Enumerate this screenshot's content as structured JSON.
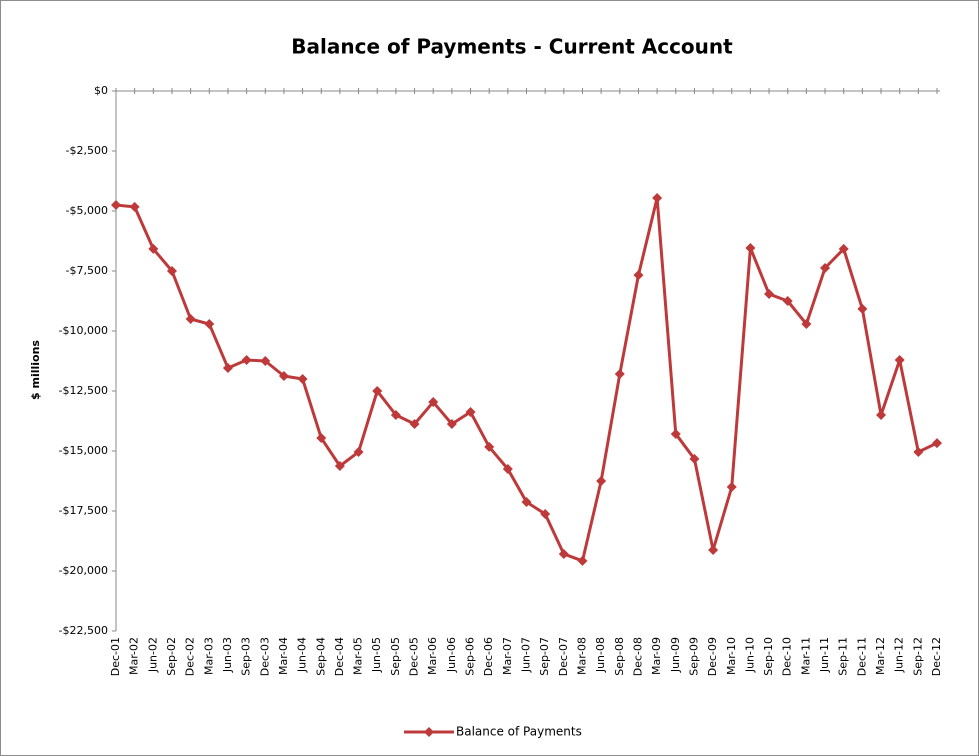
{
  "chart_data": {
    "type": "line",
    "title": "Balance of Payments - Current Account",
    "y_label": "$ millions",
    "categories": [
      "Dec-01",
      "Mar-02",
      "Jun-02",
      "Sep-02",
      "Dec-02",
      "Mar-03",
      "Jun-03",
      "Sep-03",
      "Dec-03",
      "Mar-04",
      "Jun-04",
      "Sep-04",
      "Dec-04",
      "Mar-05",
      "Jun-05",
      "Sep-05",
      "Dec-05",
      "Mar-06",
      "Jun-06",
      "Sep-06",
      "Dec-06",
      "Mar-07",
      "Jun-07",
      "Sep-07",
      "Dec-07",
      "Mar-08",
      "Jun-08",
      "Sep-08",
      "Dec-08",
      "Mar-09",
      "Jun-09",
      "Sep-09",
      "Dec-09",
      "Mar-10",
      "Jun-10",
      "Sep-10",
      "Dec-10",
      "Mar-11",
      "Jun-11",
      "Sep-11",
      "Dec-11",
      "Mar-12",
      "Jun-12",
      "Sep-12",
      "Dec-12"
    ],
    "series": [
      {
        "name": "Balance of Payments",
        "color": "#be3a3a",
        "values": [
          -4750,
          -4830,
          -6580,
          -7500,
          -9500,
          -9710,
          -11540,
          -11210,
          -11250,
          -11875,
          -12000,
          -14460,
          -15625,
          -15040,
          -12500,
          -13500,
          -13875,
          -12960,
          -13875,
          -13375,
          -14830,
          -15750,
          -17125,
          -17625,
          -19290,
          -19580,
          -16250,
          -11790,
          -7670,
          -4460,
          -14290,
          -15330,
          -19125,
          -16500,
          -6540,
          -8460,
          -8750,
          -9710,
          -7375,
          -6580,
          -9080,
          -13500,
          -11210,
          -15040,
          -14670
        ]
      }
    ],
    "ylim": [
      -22500,
      0
    ],
    "yticks": [
      {
        "value": 0,
        "label": "$0"
      },
      {
        "value": -2500,
        "label": "-$2,500"
      },
      {
        "value": -5000,
        "label": "-$5,000"
      },
      {
        "value": -7500,
        "label": "-$7,500"
      },
      {
        "value": -10000,
        "label": "-$10,000"
      },
      {
        "value": -12500,
        "label": "-$12,500"
      },
      {
        "value": -15000,
        "label": "-$15,000"
      },
      {
        "value": -17500,
        "label": "-$17,500"
      },
      {
        "value": -20000,
        "label": "-$20,000"
      },
      {
        "value": -22500,
        "label": "-$22,500"
      }
    ],
    "grid": false,
    "legend": "bottom"
  }
}
